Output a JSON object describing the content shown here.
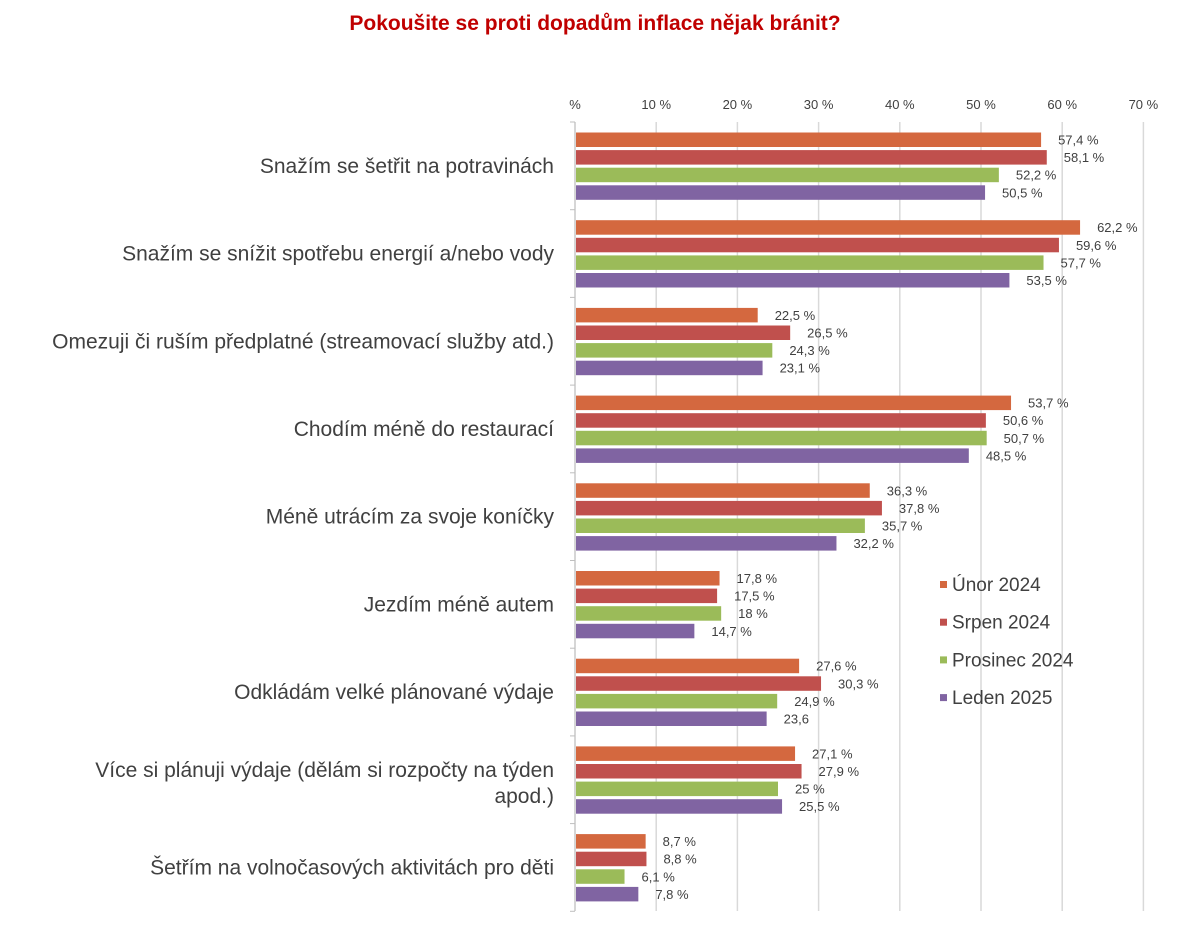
{
  "chart_data": {
    "type": "bar",
    "orientation": "horizontal",
    "title": "Pokoušite se proti dopadům inflace nějak bránit?",
    "x_tick_labels": [
      "%",
      "10 %",
      "20 %",
      "30 %",
      "40 %",
      "50 %",
      "60 %",
      "70 %"
    ],
    "xlim": [
      0,
      70
    ],
    "x_axis_position": "top",
    "grid": true,
    "legend_position": "right",
    "categories": [
      [
        "Snažím se šetřit na potravinách"
      ],
      [
        "Snažím se snížit spotřebu energií a/nebo vody"
      ],
      [
        "Omezuji či ruším předplatné (streamovací služby atd.)"
      ],
      [
        "Chodím méně do restaurací"
      ],
      [
        "Méně utrácím za svoje koníčky"
      ],
      [
        "Jezdím méně autem"
      ],
      [
        "Odkládám velké plánované výdaje"
      ],
      [
        "Více si plánuji výdaje (dělám si rozpočty na týden",
        "apod.)"
      ],
      [
        "Šetřím na volnočasových aktivitách pro děti"
      ]
    ],
    "series": [
      {
        "name": "Únor 2024",
        "color": "#d4683f",
        "values": [
          57.4,
          62.2,
          22.5,
          53.7,
          36.3,
          17.8,
          27.6,
          27.1,
          8.7
        ],
        "labels": [
          "57,4 %",
          "62,2 %",
          "22,5 %",
          "53,7 %",
          "36,3 %",
          "17,8 %",
          "27,6 %",
          "27,1 %",
          "8,7 %"
        ]
      },
      {
        "name": "Srpen 2024",
        "color": "#c0504d",
        "values": [
          58.1,
          59.6,
          26.5,
          50.6,
          37.8,
          17.5,
          30.3,
          27.9,
          8.8
        ],
        "labels": [
          "58,1 %",
          "59,6 %",
          "26,5 %",
          "50,6 %",
          "37,8 %",
          "17,5 %",
          "30,3 %",
          "27,9 %",
          "8,8 %"
        ]
      },
      {
        "name": "Prosinec 2024",
        "color": "#9bbb59",
        "values": [
          52.2,
          57.7,
          24.3,
          50.7,
          35.7,
          18,
          24.9,
          25,
          6.1
        ],
        "labels": [
          "52,2 %",
          "57,7 %",
          "24,3 %",
          "50,7 %",
          "35,7 %",
          "18 %",
          "24,9 %",
          "25 %",
          "6,1 %"
        ]
      },
      {
        "name": "Leden 2025",
        "color": "#8064a2",
        "values": [
          50.5,
          53.5,
          23.1,
          48.5,
          32.2,
          14.7,
          23.6,
          25.5,
          7.8
        ],
        "labels": [
          "50,5 %",
          "53,5 %",
          "23,1 %",
          "48,5 %",
          "32,2 %",
          "14,7 %",
          "23,6",
          "25,5 %",
          "7,8 %"
        ]
      }
    ]
  }
}
